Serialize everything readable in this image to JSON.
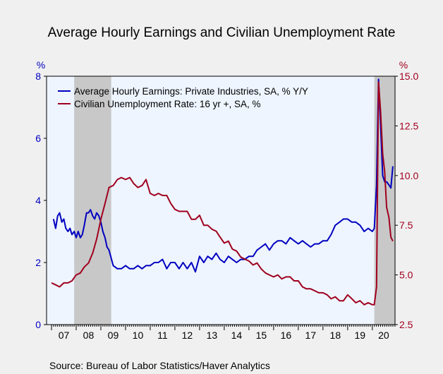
{
  "chart_data": {
    "type": "line",
    "title": "Average Hourly Earnings and Civilian Unemployment Rate",
    "source": "Source:  Bureau of Labor Statistics/Haver Analytics",
    "y_left_unit": "%",
    "y_right_unit": "%",
    "ylim_left": [
      0,
      8
    ],
    "yticks_left": [
      "0",
      "2",
      "4",
      "6",
      "8"
    ],
    "ylim_right": [
      2.5,
      15.0
    ],
    "yticks_right": [
      "2.5",
      "5.0",
      "7.5",
      "10.0",
      "12.5",
      "15.0"
    ],
    "xlim": [
      2006.8,
      2020.92
    ],
    "x_tick_labels": [
      "07",
      "08",
      "09",
      "10",
      "11",
      "12",
      "13",
      "14",
      "15",
      "16",
      "17",
      "18",
      "19",
      "20"
    ],
    "recessions": [
      [
        2007.92,
        2009.42
      ],
      [
        2020.08,
        2020.92
      ]
    ],
    "legend_position": "top-left",
    "colors": {
      "earnings": "#0000c0",
      "unemployment": "#a0001e",
      "recession": "#c8c8c8",
      "plot_bg": "#eef5ff",
      "left_axis": "#0000c0",
      "right_axis": "#a0001e"
    },
    "series": [
      {
        "name": "Average Hourly Earnings: Private Industries, SA, % Y/Y",
        "axis": "left",
        "x": [
          2007.08,
          2007.17,
          2007.25,
          2007.33,
          2007.42,
          2007.5,
          2007.58,
          2007.67,
          2007.75,
          2007.83,
          2007.92,
          2008.0,
          2008.08,
          2008.17,
          2008.25,
          2008.33,
          2008.42,
          2008.5,
          2008.58,
          2008.67,
          2008.75,
          2008.83,
          2008.92,
          2009.0,
          2009.08,
          2009.17,
          2009.25,
          2009.33,
          2009.5,
          2009.67,
          2009.83,
          2010.0,
          2010.17,
          2010.33,
          2010.5,
          2010.67,
          2010.83,
          2011.0,
          2011.17,
          2011.33,
          2011.5,
          2011.67,
          2011.83,
          2012.0,
          2012.17,
          2012.33,
          2012.5,
          2012.67,
          2012.83,
          2013.0,
          2013.17,
          2013.33,
          2013.5,
          2013.67,
          2013.83,
          2014.0,
          2014.17,
          2014.33,
          2014.5,
          2014.67,
          2014.83,
          2015.0,
          2015.17,
          2015.33,
          2015.5,
          2015.67,
          2015.83,
          2016.0,
          2016.17,
          2016.33,
          2016.5,
          2016.67,
          2016.83,
          2017.0,
          2017.17,
          2017.33,
          2017.5,
          2017.67,
          2017.83,
          2018.0,
          2018.17,
          2018.33,
          2018.5,
          2018.67,
          2018.83,
          2019.0,
          2019.17,
          2019.33,
          2019.5,
          2019.67,
          2019.83,
          2020.0,
          2020.08,
          2020.17,
          2020.25,
          2020.33,
          2020.42,
          2020.5,
          2020.58,
          2020.67,
          2020.75,
          2020.83
        ],
        "values": [
          3.4,
          3.1,
          3.5,
          3.6,
          3.3,
          3.4,
          3.1,
          3.0,
          3.1,
          2.9,
          3.0,
          2.8,
          3.0,
          2.8,
          2.9,
          3.2,
          3.6,
          3.6,
          3.7,
          3.5,
          3.4,
          3.6,
          3.5,
          3.3,
          3.0,
          2.8,
          2.5,
          2.4,
          1.9,
          1.8,
          1.8,
          1.9,
          1.8,
          1.8,
          1.9,
          1.8,
          1.9,
          1.9,
          2.0,
          2.0,
          2.1,
          1.8,
          2.0,
          2.0,
          1.8,
          2.0,
          1.8,
          2.0,
          1.7,
          2.2,
          2.0,
          2.2,
          2.1,
          2.3,
          2.1,
          2.0,
          2.2,
          2.1,
          2.0,
          2.1,
          2.1,
          2.2,
          2.2,
          2.4,
          2.5,
          2.6,
          2.4,
          2.6,
          2.7,
          2.7,
          2.6,
          2.8,
          2.7,
          2.6,
          2.7,
          2.6,
          2.5,
          2.6,
          2.6,
          2.7,
          2.7,
          2.9,
          3.2,
          3.3,
          3.4,
          3.4,
          3.3,
          3.3,
          3.2,
          3.0,
          3.1,
          3.0,
          3.1,
          4.5,
          7.9,
          6.5,
          4.8,
          4.6,
          4.6,
          4.5,
          4.4,
          5.1
        ]
      },
      {
        "name": "Civilian Unemployment Rate: 16 yr +, SA, %",
        "axis": "right",
        "x": [
          2007.0,
          2007.17,
          2007.33,
          2007.5,
          2007.67,
          2007.83,
          2008.0,
          2008.17,
          2008.33,
          2008.5,
          2008.67,
          2008.83,
          2009.0,
          2009.17,
          2009.33,
          2009.5,
          2009.67,
          2009.83,
          2010.0,
          2010.17,
          2010.33,
          2010.5,
          2010.67,
          2010.83,
          2011.0,
          2011.17,
          2011.33,
          2011.5,
          2011.67,
          2011.83,
          2012.0,
          2012.17,
          2012.33,
          2012.5,
          2012.67,
          2012.83,
          2013.0,
          2013.17,
          2013.33,
          2013.5,
          2013.67,
          2013.83,
          2014.0,
          2014.17,
          2014.33,
          2014.5,
          2014.67,
          2014.83,
          2015.0,
          2015.17,
          2015.33,
          2015.5,
          2015.67,
          2015.83,
          2016.0,
          2016.17,
          2016.33,
          2016.5,
          2016.67,
          2016.83,
          2017.0,
          2017.17,
          2017.33,
          2017.5,
          2017.67,
          2017.83,
          2018.0,
          2018.17,
          2018.33,
          2018.5,
          2018.67,
          2018.83,
          2019.0,
          2019.17,
          2019.33,
          2019.5,
          2019.67,
          2019.83,
          2020.0,
          2020.08,
          2020.17,
          2020.25,
          2020.33,
          2020.42,
          2020.5,
          2020.58,
          2020.67,
          2020.75,
          2020.83
        ],
        "values": [
          4.6,
          4.5,
          4.4,
          4.6,
          4.6,
          4.7,
          5.0,
          5.1,
          5.4,
          5.6,
          6.1,
          6.8,
          7.8,
          8.6,
          9.4,
          9.5,
          9.8,
          9.9,
          9.8,
          9.9,
          9.6,
          9.4,
          9.5,
          9.8,
          9.1,
          9.0,
          9.1,
          9.0,
          9.0,
          8.6,
          8.3,
          8.2,
          8.2,
          8.2,
          7.8,
          7.8,
          8.0,
          7.5,
          7.5,
          7.3,
          7.2,
          6.9,
          6.6,
          6.7,
          6.3,
          6.2,
          5.9,
          5.8,
          5.7,
          5.5,
          5.6,
          5.3,
          5.1,
          5.0,
          4.9,
          5.0,
          4.8,
          4.9,
          4.9,
          4.7,
          4.7,
          4.4,
          4.3,
          4.3,
          4.2,
          4.1,
          4.1,
          4.0,
          3.8,
          3.9,
          3.7,
          3.7,
          4.0,
          3.8,
          3.6,
          3.7,
          3.5,
          3.6,
          3.5,
          3.5,
          4.4,
          14.7,
          13.3,
          11.1,
          10.2,
          8.4,
          7.9,
          6.9,
          6.7
        ]
      }
    ]
  }
}
